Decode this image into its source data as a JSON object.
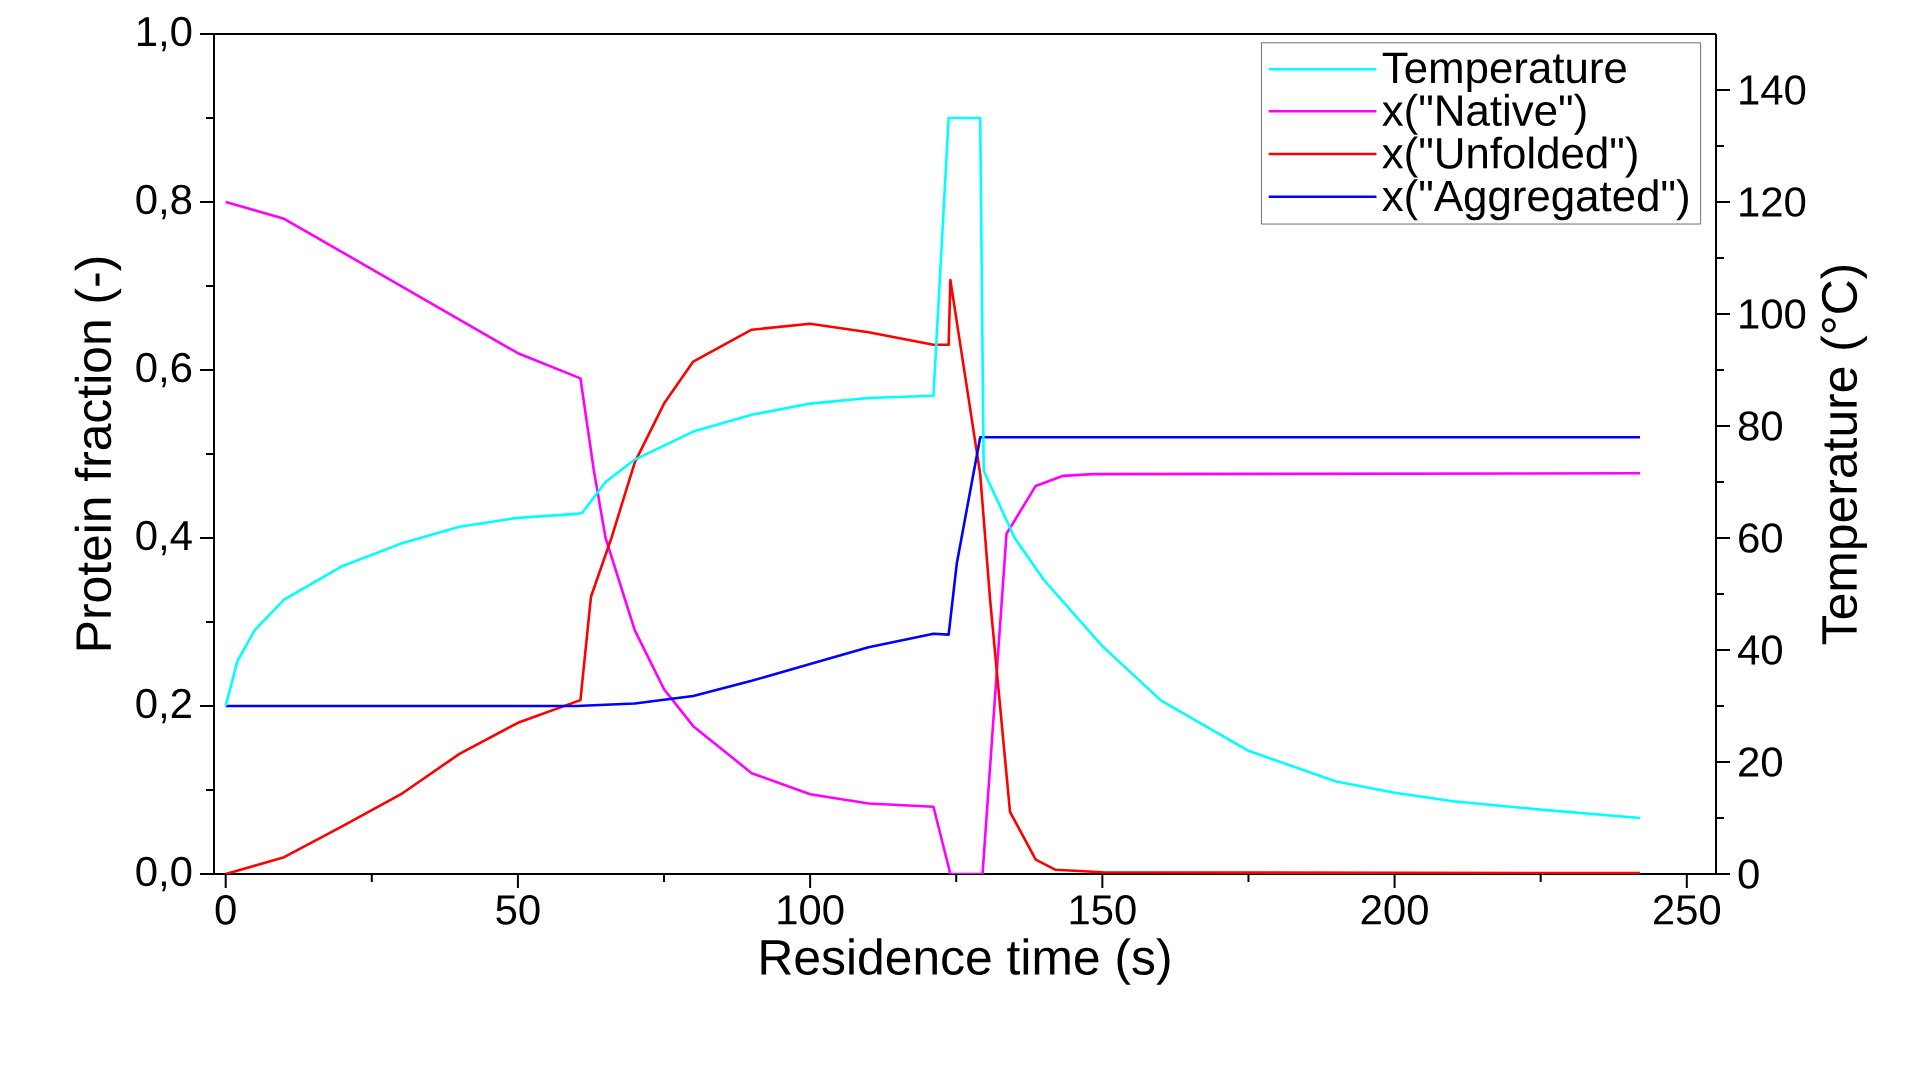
{
  "chart_data": {
    "type": "line",
    "xlabel": "Residence time (s)",
    "ylabel": "Protein fraction (-)",
    "y2label": "Temperature (°C)",
    "xlim": [
      -2,
      255
    ],
    "ylim": [
      0,
      1
    ],
    "y2lim": [
      0,
      150
    ],
    "xticks": [
      0,
      50,
      100,
      150,
      200,
      250
    ],
    "yticks": [
      {
        "value": 0,
        "label": "0,0"
      },
      {
        "value": 0.2,
        "label": "0,2"
      },
      {
        "value": 0.4,
        "label": "0,4"
      },
      {
        "value": 0.6,
        "label": "0,6"
      },
      {
        "value": 0.8,
        "label": "0,8"
      },
      {
        "value": 1,
        "label": "1,0"
      }
    ],
    "y2ticks": [
      0,
      20,
      40,
      60,
      80,
      100,
      120,
      140
    ],
    "legend": "top right",
    "grid": false,
    "marker": "none",
    "line_style": "solid",
    "series": [
      {
        "name": "Temperature",
        "color": "#00ffff",
        "axis": "y2",
        "x": [
          0,
          2,
          5,
          10,
          20,
          30,
          40,
          50,
          60,
          61,
          65,
          70,
          80,
          90,
          100,
          110,
          121.1,
          123.7,
          129.1,
          129.7,
          135,
          140,
          150,
          160,
          175,
          190,
          200,
          210,
          225,
          242
        ],
        "values": [
          30,
          38,
          43.6,
          49,
          55,
          59,
          62,
          63.6,
          64.3,
          64.5,
          70,
          74,
          79,
          82,
          84,
          85,
          85.4,
          135,
          135,
          72,
          60,
          52.5,
          40.7,
          31,
          22,
          16.5,
          14.5,
          13,
          11.5,
          10
        ]
      },
      {
        "name": "x(\"Native\")",
        "color": "#ff00ff",
        "x": [
          0,
          10,
          20,
          30,
          40,
          50,
          60.7,
          63,
          65,
          70,
          75,
          80,
          90,
          100,
          110,
          121.1,
          124,
          129.5,
          133.6,
          138.6,
          143.3,
          148.4,
          242
        ],
        "values": [
          0.8,
          0.78,
          0.74,
          0.7,
          0.66,
          0.62,
          0.59,
          0.48,
          0.4,
          0.29,
          0.22,
          0.176,
          0.12,
          0.095,
          0.084,
          0.08,
          0,
          0,
          0.405,
          0.462,
          0.474,
          0.476,
          0.477
        ]
      },
      {
        "name": "x(\"Unfolded\")",
        "color": "#ff0000",
        "x": [
          0,
          10,
          20,
          30,
          40,
          50,
          60.7,
          62.5,
          66,
          70,
          75,
          80,
          90,
          100,
          110,
          121.1,
          123.7,
          124,
          129.1,
          130.8,
          134.2,
          138.6,
          142,
          150,
          242
        ],
        "values": [
          0,
          0.02,
          0.057,
          0.095,
          0.143,
          0.18,
          0.207,
          0.33,
          0.4,
          0.49,
          0.56,
          0.61,
          0.648,
          0.655,
          0.645,
          0.63,
          0.63,
          0.707,
          0.476,
          0.326,
          0.074,
          0.017,
          0.005,
          0.002,
          0.001
        ]
      },
      {
        "name": "x(\"Aggregated\")",
        "color": "#0000ff",
        "x": [
          0,
          60,
          70,
          80,
          90,
          100,
          110,
          121.1,
          123.7,
          125.1,
          129.1,
          242
        ],
        "values": [
          0.2,
          0.2,
          0.203,
          0.212,
          0.23,
          0.25,
          0.27,
          0.286,
          0.285,
          0.37,
          0.52,
          0.52
        ]
      }
    ]
  }
}
